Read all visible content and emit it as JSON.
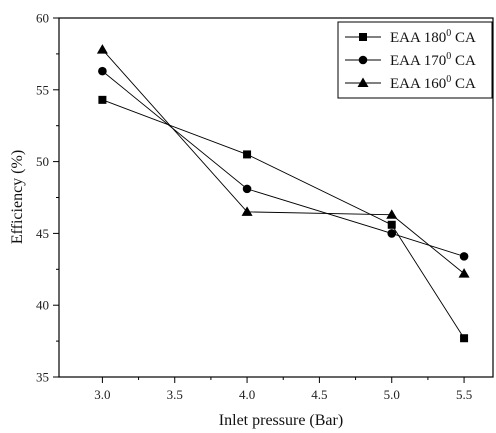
{
  "chart_data": {
    "type": "line",
    "xlabel": "Inlet pressure (Bar)",
    "ylabel": "Efficiency (%)",
    "xlim": [
      2.7,
      5.7
    ],
    "ylim": [
      35,
      60
    ],
    "xticks": [
      3.0,
      3.5,
      4.0,
      4.5,
      5.0,
      5.5
    ],
    "xtick_labels": [
      "3.0",
      "3.5",
      "4.0",
      "4.5",
      "5.0",
      "5.5"
    ],
    "yticks": [
      35,
      40,
      45,
      50,
      55,
      60
    ],
    "ytick_labels": [
      "35",
      "40",
      "45",
      "50",
      "55",
      "60"
    ],
    "grid": false,
    "legend_position": "top-right",
    "x": [
      3.0,
      4.0,
      5.0,
      5.5
    ],
    "series": [
      {
        "name": "EAA 180",
        "name_sup": "0",
        "name_suffix": " CA",
        "marker": "square",
        "values": [
          54.3,
          50.5,
          45.6,
          37.7
        ]
      },
      {
        "name": "EAA 170",
        "name_sup": "0",
        "name_suffix": " CA",
        "marker": "circle",
        "values": [
          56.3,
          48.1,
          45.0,
          43.4
        ]
      },
      {
        "name": "EAA 160",
        "name_sup": "0",
        "name_suffix": " CA",
        "marker": "triangle",
        "values": [
          57.8,
          46.5,
          46.3,
          42.2
        ]
      }
    ],
    "colors": {
      "line": "#000000",
      "marker": "#000000",
      "axis": "#000000"
    }
  }
}
